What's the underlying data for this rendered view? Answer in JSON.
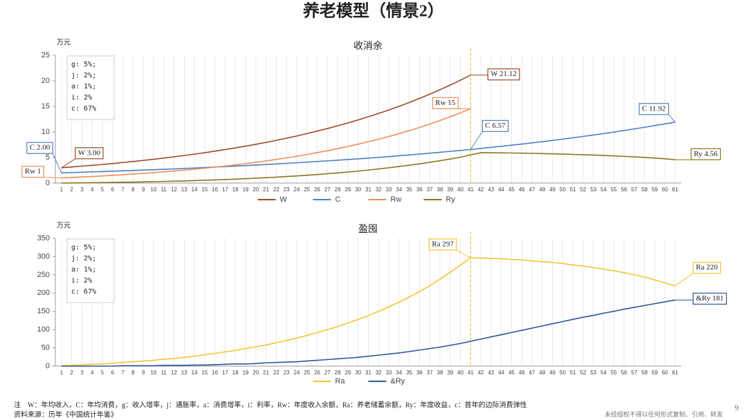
{
  "title": "养老模型（情景2）",
  "note": "注　W：年均收入，C：年均消费，g：收入增率，j：通胀率，a：消费增率，i：利率，Rw：年度收入余额，Ra：养老储蓄余额，Ry：年度收益，c：首年的边际消费弹性",
  "source": "资料来源：历年《中国统计年鉴》",
  "disclaimer": "未经授权不得以任何形式复制、引用、转发",
  "page_number": "9",
  "chart_data": [
    {
      "type": "line",
      "title": "收消余",
      "ylabel": "万元",
      "x": [
        1,
        2,
        3,
        4,
        5,
        6,
        7,
        8,
        9,
        10,
        11,
        12,
        13,
        14,
        15,
        16,
        17,
        18,
        19,
        20,
        21,
        22,
        23,
        24,
        25,
        26,
        27,
        28,
        29,
        30,
        31,
        32,
        33,
        34,
        35,
        36,
        37,
        38,
        39,
        40,
        41,
        42,
        43,
        44,
        45,
        46,
        47,
        48,
        49,
        50,
        51,
        52,
        53,
        54,
        55,
        56,
        57,
        58,
        59,
        60,
        61
      ],
      "xlim": [
        0.4,
        61.6
      ],
      "xticks": [
        1,
        2,
        3,
        4,
        5,
        6,
        7,
        8,
        9,
        10,
        11,
        12,
        13,
        14,
        15,
        16,
        17,
        18,
        19,
        20,
        21,
        22,
        23,
        24,
        25,
        26,
        27,
        28,
        29,
        30,
        31,
        32,
        33,
        34,
        35,
        36,
        37,
        38,
        39,
        40,
        41,
        42,
        43,
        44,
        45,
        46,
        47,
        48,
        49,
        50,
        51,
        52,
        53,
        54,
        55,
        56,
        57,
        58,
        59,
        60,
        61
      ],
      "ylim": [
        0,
        25
      ],
      "yticks": [
        0,
        5,
        10,
        15,
        20,
        25
      ],
      "vgrid": true,
      "vline": 41,
      "legend": "bottom",
      "annotations": [
        "g: 5%;",
        "j: 2%;",
        "a: 1%;",
        "i: 2%",
        "c: 67%"
      ],
      "series": [
        {
          "name": "W",
          "color": "#9a4a26",
          "values": [
            3.0,
            3.15,
            3.31,
            3.47,
            3.65,
            3.83,
            4.02,
            4.22,
            4.43,
            4.65,
            4.89,
            5.13,
            5.39,
            5.66,
            5.94,
            6.24,
            6.55,
            6.88,
            7.22,
            7.58,
            7.96,
            8.36,
            8.78,
            9.21,
            9.68,
            10.16,
            10.67,
            11.2,
            11.76,
            12.35,
            12.97,
            13.61,
            14.29,
            15.01,
            15.76,
            16.55,
            17.38,
            18.25,
            19.16,
            20.11,
            21.12,
            null,
            null,
            null,
            null,
            null,
            null,
            null,
            null,
            null,
            null,
            null,
            null,
            null,
            null,
            null,
            null,
            null,
            null,
            null,
            null
          ],
          "value_labels": [
            "W 3.00",
            null,
            null,
            null,
            null,
            null,
            null,
            null,
            null,
            null,
            null,
            null,
            null,
            null,
            null,
            null,
            null,
            null,
            null,
            null,
            null,
            null,
            null,
            null,
            null,
            null,
            null,
            null,
            null,
            null,
            null,
            null,
            null,
            null,
            null,
            null,
            null,
            null,
            null,
            null,
            "W 21.12",
            null,
            null,
            null,
            null,
            null,
            null,
            null,
            null,
            null,
            null,
            null,
            null,
            null,
            null,
            null,
            null,
            null,
            null,
            null,
            null
          ]
        },
        {
          "name": "C",
          "color": "#4a7fc1",
          "values": [
            2.0,
            2.06,
            2.12,
            2.19,
            2.25,
            2.32,
            2.39,
            2.46,
            2.54,
            2.61,
            2.69,
            2.77,
            2.86,
            2.94,
            3.03,
            3.13,
            3.22,
            3.32,
            3.42,
            3.52,
            3.63,
            3.74,
            3.85,
            3.97,
            4.09,
            4.21,
            4.34,
            4.47,
            4.6,
            4.74,
            4.88,
            5.03,
            5.18,
            5.34,
            5.5,
            5.67,
            5.84,
            6.02,
            6.2,
            6.38,
            6.57,
            6.78,
            6.98,
            7.19,
            7.41,
            7.63,
            7.86,
            8.1,
            8.34,
            8.6,
            8.86,
            9.12,
            9.4,
            9.68,
            9.98,
            10.28,
            10.59,
            10.91,
            11.24,
            11.58,
            11.92
          ],
          "value_labels": [
            "C 2.00",
            null,
            null,
            null,
            null,
            null,
            null,
            null,
            null,
            null,
            null,
            null,
            null,
            null,
            null,
            null,
            null,
            null,
            null,
            null,
            null,
            null,
            null,
            null,
            null,
            null,
            null,
            null,
            null,
            null,
            null,
            null,
            null,
            null,
            null,
            null,
            null,
            null,
            null,
            null,
            "C 6.57",
            null,
            null,
            null,
            null,
            null,
            null,
            null,
            null,
            null,
            null,
            null,
            null,
            null,
            null,
            null,
            null,
            null,
            null,
            null,
            "C 11.92"
          ]
        },
        {
          "name": "Rw",
          "color": "#ef8c54",
          "values": [
            1.0,
            1.09,
            1.19,
            1.28,
            1.4,
            1.51,
            1.63,
            1.76,
            1.89,
            2.04,
            2.2,
            2.36,
            2.53,
            2.72,
            2.91,
            3.11,
            3.33,
            3.56,
            3.8,
            4.06,
            4.33,
            4.62,
            4.93,
            5.24,
            5.59,
            5.95,
            6.33,
            6.73,
            7.16,
            7.61,
            8.09,
            8.58,
            9.11,
            9.67,
            10.26,
            10.88,
            11.54,
            12.23,
            12.96,
            13.73,
            14.55,
            null,
            null,
            null,
            null,
            null,
            null,
            null,
            null,
            null,
            null,
            null,
            null,
            null,
            null,
            null,
            null,
            null,
            null,
            null,
            null
          ],
          "value_labels": [
            "Rw 1",
            null,
            null,
            null,
            null,
            null,
            null,
            null,
            null,
            null,
            null,
            null,
            null,
            null,
            null,
            null,
            null,
            null,
            null,
            null,
            null,
            null,
            null,
            null,
            null,
            null,
            null,
            null,
            null,
            null,
            null,
            null,
            null,
            null,
            null,
            null,
            null,
            null,
            null,
            null,
            "Rw 15",
            null,
            null,
            null,
            null,
            null,
            null,
            null,
            null,
            null,
            null,
            null,
            null,
            null,
            null,
            null,
            null,
            null,
            null,
            null,
            null
          ]
        },
        {
          "name": "Ry",
          "color": "#8a7418",
          "values": [
            0,
            0.02,
            0.04,
            0.07,
            0.09,
            0.12,
            0.16,
            0.19,
            0.23,
            0.27,
            0.32,
            0.37,
            0.42,
            0.48,
            0.55,
            0.62,
            0.69,
            0.77,
            0.86,
            0.95,
            1.05,
            1.16,
            1.28,
            1.4,
            1.53,
            1.67,
            1.83,
            1.99,
            2.16,
            2.35,
            2.55,
            2.76,
            2.99,
            3.23,
            3.49,
            3.76,
            4.06,
            4.37,
            4.7,
            5.05,
            5.52,
            5.94,
            5.92,
            5.9,
            5.88,
            5.85,
            5.81,
            5.77,
            5.72,
            5.67,
            5.61,
            5.55,
            5.48,
            5.4,
            5.31,
            5.22,
            5.12,
            5.01,
            4.89,
            4.76,
            4.56
          ],
          "value_labels": [
            null,
            null,
            null,
            null,
            null,
            null,
            null,
            null,
            null,
            null,
            null,
            null,
            null,
            null,
            null,
            null,
            null,
            null,
            null,
            null,
            null,
            null,
            null,
            null,
            null,
            null,
            null,
            null,
            null,
            null,
            null,
            null,
            null,
            null,
            null,
            null,
            null,
            null,
            null,
            null,
            null,
            null,
            null,
            null,
            null,
            null,
            null,
            null,
            null,
            null,
            null,
            null,
            null,
            null,
            null,
            null,
            null,
            null,
            null,
            null,
            "Ry 4.56"
          ]
        }
      ]
    },
    {
      "type": "line",
      "title": "盈囤",
      "ylabel": "万元",
      "x": [
        1,
        2,
        3,
        4,
        5,
        6,
        7,
        8,
        9,
        10,
        11,
        12,
        13,
        14,
        15,
        16,
        17,
        18,
        19,
        20,
        21,
        22,
        23,
        24,
        25,
        26,
        27,
        28,
        29,
        30,
        31,
        32,
        33,
        34,
        35,
        36,
        37,
        38,
        39,
        40,
        41,
        42,
        43,
        44,
        45,
        46,
        47,
        48,
        49,
        50,
        51,
        52,
        53,
        54,
        55,
        56,
        57,
        58,
        59,
        60,
        61
      ],
      "xlim": [
        0.4,
        61.6
      ],
      "xticks": [
        1,
        2,
        3,
        4,
        5,
        6,
        7,
        8,
        9,
        10,
        11,
        12,
        13,
        14,
        15,
        16,
        17,
        18,
        19,
        20,
        21,
        22,
        23,
        24,
        25,
        26,
        27,
        28,
        29,
        30,
        31,
        32,
        33,
        34,
        35,
        36,
        37,
        38,
        39,
        40,
        41,
        42,
        43,
        44,
        45,
        46,
        47,
        48,
        49,
        50,
        51,
        52,
        53,
        54,
        55,
        56,
        57,
        58,
        59,
        60,
        61
      ],
      "ylim": [
        0,
        350
      ],
      "yticks": [
        0,
        50,
        100,
        150,
        200,
        250,
        300,
        350
      ],
      "vgrid": true,
      "vline": 41,
      "legend": "bottom",
      "annotations": [
        "g: 5%;",
        "j: 2%;",
        "a: 1%;",
        "i: 2%",
        "c: 67%"
      ],
      "series": [
        {
          "name": "Ra",
          "color": "#f4c430",
          "values": [
            1,
            2,
            3,
            5,
            6,
            8,
            10,
            12,
            14,
            16,
            19,
            21,
            24,
            27,
            31,
            35,
            39,
            43,
            48,
            53,
            58,
            64,
            70,
            77,
            84,
            92,
            100,
            108,
            118,
            128,
            138,
            150,
            162,
            175,
            189,
            204,
            220,
            238,
            257,
            276,
            297,
            296,
            295,
            294,
            292,
            291,
            288,
            286,
            284,
            281,
            277,
            274,
            270,
            266,
            261,
            256,
            250,
            244,
            236,
            228,
            220
          ],
          "value_labels": [
            null,
            null,
            null,
            null,
            null,
            null,
            null,
            null,
            null,
            null,
            null,
            null,
            null,
            null,
            null,
            null,
            null,
            null,
            null,
            null,
            null,
            null,
            null,
            null,
            null,
            null,
            null,
            null,
            null,
            null,
            null,
            null,
            null,
            null,
            null,
            null,
            null,
            null,
            null,
            null,
            "Ra 297",
            null,
            null,
            null,
            null,
            null,
            null,
            null,
            null,
            null,
            null,
            null,
            null,
            null,
            null,
            null,
            null,
            null,
            null,
            null,
            "Ra 220"
          ]
        },
        {
          "name": "&Ry",
          "color": "#2e5597",
          "values": [
            0,
            0,
            0,
            0,
            0,
            0,
            1,
            1,
            1,
            1,
            2,
            2,
            2,
            3,
            3,
            4,
            5,
            6,
            6,
            7,
            9,
            10,
            11,
            12,
            14,
            16,
            18,
            20,
            22,
            24,
            27,
            30,
            33,
            36,
            40,
            44,
            48,
            52,
            57,
            62,
            68,
            74,
            80,
            86,
            92,
            98,
            104,
            110,
            116,
            122,
            128,
            134,
            139,
            145,
            150,
            156,
            161,
            166,
            171,
            176,
            181
          ],
          "value_labels": [
            null,
            null,
            null,
            null,
            null,
            null,
            null,
            null,
            null,
            null,
            null,
            null,
            null,
            null,
            null,
            null,
            null,
            null,
            null,
            null,
            null,
            null,
            null,
            null,
            null,
            null,
            null,
            null,
            null,
            null,
            null,
            null,
            null,
            null,
            null,
            null,
            null,
            null,
            null,
            null,
            null,
            null,
            null,
            null,
            null,
            null,
            null,
            null,
            null,
            null,
            null,
            null,
            null,
            null,
            null,
            null,
            null,
            null,
            null,
            null,
            "&Ry 181"
          ]
        }
      ]
    }
  ]
}
